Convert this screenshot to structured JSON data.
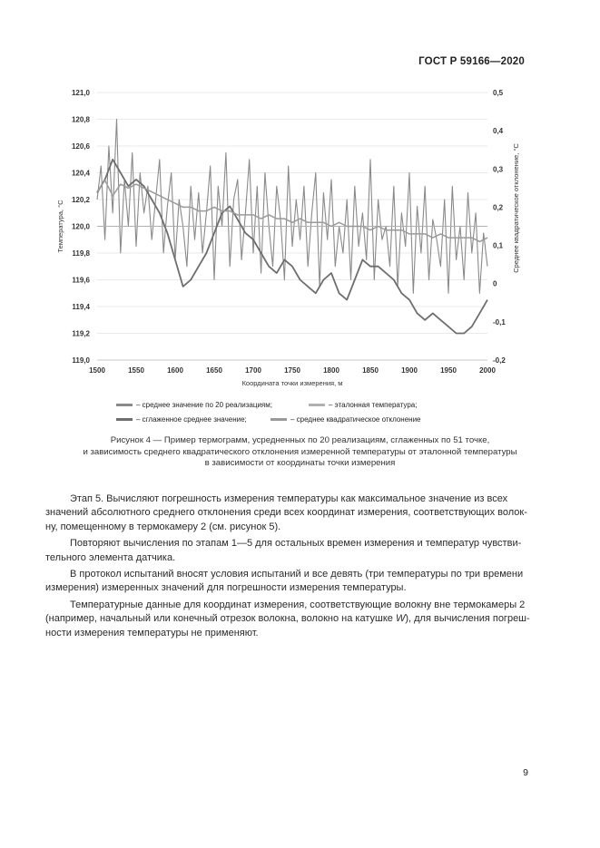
{
  "header": {
    "standard": "ГОСТ Р 59166—2020"
  },
  "chart_data": {
    "type": "line",
    "xlabel": "Координата точки измерения, м",
    "ylabel": "Температура, °С",
    "y2label": "Среднее квадратическое отклонение, °С",
    "xlim": [
      1500,
      2000
    ],
    "ylim": [
      119.0,
      121.0
    ],
    "y2lim": [
      -0.2,
      0.5
    ],
    "x_ticks": [
      "1500",
      "1550",
      "1600",
      "1650",
      "1700",
      "1750",
      "1800",
      "1850",
      "1900",
      "1950",
      "2000"
    ],
    "y_ticks": [
      "121,0",
      "120,8",
      "120,6",
      "120,4",
      "120,2",
      "120,0",
      "119,8",
      "119,6",
      "119,4",
      "119,2",
      "119,0"
    ],
    "y2_ticks": [
      "0,5",
      "0,4",
      "0,3",
      "0,2",
      "0,1",
      "0",
      "-0,1",
      "-0,2"
    ],
    "grid": true,
    "series": [
      {
        "name": "– среднее значение по 20 реализациям;",
        "color": "#8a8a8a",
        "x": [
          1500,
          1505,
          1510,
          1515,
          1520,
          1525,
          1530,
          1535,
          1540,
          1545,
          1550,
          1555,
          1560,
          1565,
          1570,
          1575,
          1580,
          1585,
          1590,
          1595,
          1600,
          1605,
          1610,
          1615,
          1620,
          1625,
          1630,
          1635,
          1640,
          1645,
          1650,
          1655,
          1660,
          1665,
          1670,
          1675,
          1680,
          1685,
          1690,
          1695,
          1700,
          1705,
          1710,
          1715,
          1720,
          1725,
          1730,
          1735,
          1740,
          1745,
          1750,
          1755,
          1760,
          1765,
          1770,
          1775,
          1780,
          1785,
          1790,
          1795,
          1800,
          1805,
          1810,
          1815,
          1820,
          1825,
          1830,
          1835,
          1840,
          1845,
          1850,
          1855,
          1860,
          1865,
          1870,
          1875,
          1880,
          1885,
          1890,
          1895,
          1900,
          1905,
          1910,
          1915,
          1920,
          1925,
          1930,
          1935,
          1940,
          1945,
          1950,
          1955,
          1960,
          1965,
          1970,
          1975,
          1980,
          1985,
          1990,
          1995,
          2000
        ],
        "values": [
          120.2,
          120.45,
          119.9,
          120.6,
          120.1,
          120.8,
          119.8,
          120.35,
          120.0,
          120.55,
          119.85,
          120.4,
          120.1,
          120.3,
          119.9,
          120.2,
          120.5,
          119.8,
          120.15,
          120.4,
          119.75,
          120.2,
          120.0,
          119.7,
          120.3,
          119.9,
          120.25,
          119.8,
          120.1,
          120.45,
          119.6,
          120.3,
          120.0,
          120.55,
          119.7,
          120.2,
          120.35,
          119.75,
          120.1,
          120.5,
          119.8,
          120.3,
          119.65,
          120.4,
          120.0,
          119.7,
          120.3,
          120.05,
          119.6,
          120.45,
          119.85,
          120.2,
          119.9,
          120.3,
          119.7,
          120.1,
          120.4,
          119.55,
          120.25,
          119.9,
          120.35,
          119.7,
          120.0,
          119.8,
          120.2,
          119.6,
          120.3,
          119.85,
          120.1,
          119.75,
          120.5,
          119.6,
          120.2,
          119.9,
          120.0,
          119.7,
          120.3,
          119.55,
          120.1,
          119.85,
          120.4,
          119.5,
          120.15,
          119.8,
          120.3,
          119.6,
          120.05,
          119.9,
          119.7,
          120.2,
          119.5,
          120.3,
          119.75,
          120.0,
          119.6,
          120.25,
          119.8,
          120.1,
          119.5,
          119.95,
          119.7
        ]
      },
      {
        "name": "– эталонная температура;",
        "color": "#b0b0b0",
        "x": [
          1500,
          1550,
          1600,
          1650,
          1700,
          1750,
          1800,
          1850,
          1900,
          1950,
          2000
        ],
        "values": [
          120.0,
          120.0,
          120.0,
          120.0,
          120.0,
          120.0,
          120.0,
          120.0,
          120.0,
          120.0,
          120.0
        ]
      },
      {
        "name": "– сглаженное среднее значение;",
        "color": "#6e6e6e",
        "x": [
          1500,
          1510,
          1520,
          1530,
          1540,
          1550,
          1560,
          1570,
          1580,
          1590,
          1600,
          1610,
          1620,
          1630,
          1640,
          1650,
          1660,
          1670,
          1680,
          1690,
          1700,
          1710,
          1720,
          1730,
          1740,
          1750,
          1760,
          1770,
          1780,
          1790,
          1800,
          1810,
          1820,
          1830,
          1840,
          1850,
          1860,
          1870,
          1880,
          1890,
          1900,
          1910,
          1920,
          1930,
          1940,
          1950,
          1960,
          1970,
          1980,
          1990,
          2000
        ],
        "values": [
          120.25,
          120.35,
          120.5,
          120.4,
          120.3,
          120.35,
          120.3,
          120.2,
          120.1,
          119.95,
          119.75,
          119.55,
          119.6,
          119.7,
          119.8,
          119.95,
          120.1,
          120.15,
          120.05,
          119.95,
          119.9,
          119.8,
          119.7,
          119.65,
          119.75,
          119.7,
          119.6,
          119.55,
          119.5,
          119.6,
          119.65,
          119.5,
          119.45,
          119.6,
          119.75,
          119.7,
          119.7,
          119.65,
          119.6,
          119.5,
          119.45,
          119.35,
          119.3,
          119.35,
          119.3,
          119.25,
          119.2,
          119.2,
          119.25,
          119.35,
          119.45
        ]
      },
      {
        "name": "– среднее квадратическое отклонение",
        "color": "#9a9a9a",
        "axis": "right",
        "x": [
          1500,
          1510,
          1520,
          1530,
          1540,
          1550,
          1560,
          1570,
          1580,
          1590,
          1600,
          1610,
          1620,
          1630,
          1640,
          1650,
          1660,
          1670,
          1680,
          1690,
          1700,
          1710,
          1720,
          1730,
          1740,
          1750,
          1760,
          1770,
          1780,
          1790,
          1800,
          1810,
          1820,
          1830,
          1840,
          1850,
          1860,
          1870,
          1880,
          1890,
          1900,
          1910,
          1920,
          1930,
          1940,
          1950,
          1960,
          1970,
          1980,
          1990,
          2000
        ],
        "values": [
          0.24,
          0.27,
          0.23,
          0.26,
          0.25,
          0.26,
          0.25,
          0.24,
          0.23,
          0.22,
          0.21,
          0.2,
          0.2,
          0.19,
          0.19,
          0.2,
          0.19,
          0.19,
          0.18,
          0.18,
          0.18,
          0.17,
          0.18,
          0.17,
          0.17,
          0.16,
          0.17,
          0.16,
          0.16,
          0.16,
          0.15,
          0.16,
          0.15,
          0.15,
          0.15,
          0.14,
          0.15,
          0.14,
          0.14,
          0.14,
          0.13,
          0.13,
          0.13,
          0.12,
          0.13,
          0.12,
          0.12,
          0.12,
          0.12,
          0.11,
          0.12
        ]
      }
    ]
  },
  "caption": {
    "line1": "Рисунок 4 — Пример термограмм, усредненных по 20 реализациям, сглаженных по 51 точке,",
    "line2": "и зависимость среднего квадратического отклонения измеренной температуры от эталонной температуры",
    "line3": "в зависимости от координаты точки измерения"
  },
  "body": {
    "p1_l1": "Этап 5. Вычисляют погрешность измерения температуры как максимальное значение из всех",
    "p1_l2": "значений абсолютного среднего отклонения среди всех координат измерения, соответствующих волок-",
    "p1_l3": "ну, помещенному в термокамеру 2 (см. рисунок 5).",
    "p2_l1": "Повторяют вычисления по этапам 1—5 для остальных времен измерения и температур чувстви-",
    "p2_l2": "тельного элемента датчика.",
    "p3_l1": "В протокол испытаний вносят условия испытаний и все девять (три температуры по три времени",
    "p3_l2": "измерения) измеренных значений для погрешности измерения температуры.",
    "p4_l1": "Температурные данные для координат измерения, соответствующие волокну вне термокамеры 2",
    "p4_l2": "(например, начальный или конечный отрезок волокна, волокно на катушке ",
    "p4_l2_italic": "W",
    "p4_l2_end": "), для вычисления погреш-",
    "p4_l3": "ности измерения температуры не применяют."
  },
  "page_number": "9"
}
